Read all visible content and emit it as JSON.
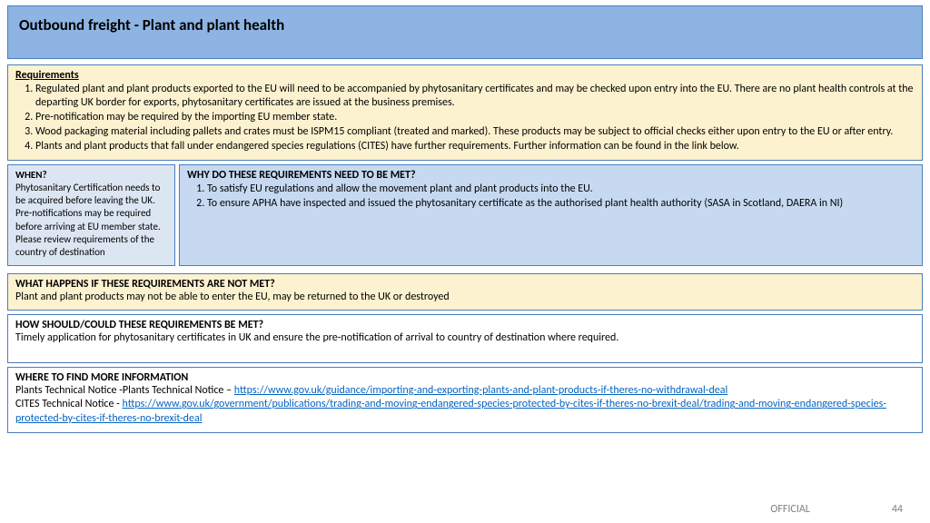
{
  "title": "Outbound freight - Plant and plant health",
  "requirements": {
    "heading": "Requirements",
    "items": [
      "Regulated plant and plant products exported to the EU will need to be accompanied by phytosanitary certificates and may be checked upon entry into the EU. There are no plant health controls at the departing UK border for exports, phytosanitary certificates are issued at the business premises.",
      "Pre-notification may be required by the importing EU member state.",
      "Wood packaging material including pallets and crates must be ISPM15 compliant (treated and marked). These products may be subject to official checks either upon entry to the EU or after entry.",
      "Plants and plant products that fall under endangered species regulations (CITES) have further requirements. Further information can be found in the link below."
    ]
  },
  "when": {
    "heading": "WHEN?",
    "body": "Phytosanitary Certification needs to be acquired before leaving the UK. Pre-notifications may be required before arriving at EU member state. Please review requirements of the country of destination"
  },
  "why": {
    "heading": "WHY DO THESE REQUIREMENTS NEED TO BE MET?",
    "items": [
      "To satisfy EU regulations and allow the movement plant and plant products into the EU.",
      "To ensure APHA have inspected and issued the phytosanitary certificate as the authorised plant health authority (SASA in Scotland, DAERA in NI)"
    ]
  },
  "notmet": {
    "heading": "WHAT HAPPENS IF THESE REQUIREMENTS ARE NOT MET?",
    "body": "Plant and plant products may not be able to enter the EU, may be returned to the UK or destroyed"
  },
  "how": {
    "heading": "HOW SHOULD/COULD THESE REQUIREMENTS BE MET?",
    "body": "Timely application for phytosanitary certificates in UK and ensure the pre-notification of arrival to country of destination where required."
  },
  "more": {
    "heading": "WHERE TO FIND MORE INFORMATION",
    "line1_prefix": "Plants Technical Notice -Plants Technical Notice – ",
    "line1_link": "https://www.gov.uk/guidance/importing-and-exporting-plants-and-plant-products-if-theres-no-withdrawal-deal",
    "line2_prefix": "CITES Technical Notice - ",
    "line2_link": "https://www.gov.uk/government/publications/trading-and-moving-endangered-species-protected-by-cites-if-theres-no-brexit-deal/trading-and-moving-endangered-species-protected-by-cites-if-theres-no-brexit-deal"
  },
  "footer": {
    "classification": "OFFICIAL",
    "page": "44"
  }
}
